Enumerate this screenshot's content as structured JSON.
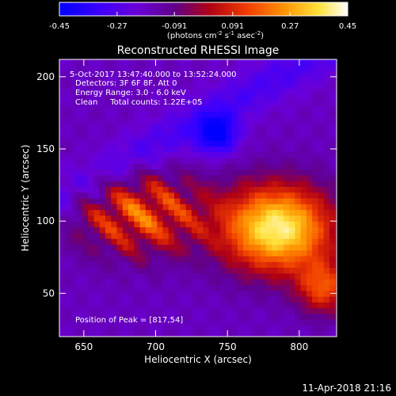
{
  "colorbar": {
    "ticks": [
      "-0.45",
      "-0.27",
      "-0.091",
      "0.091",
      "0.27",
      "0.45"
    ],
    "tick_values": [
      -0.45,
      -0.27,
      -0.091,
      0.091,
      0.27,
      0.45
    ],
    "range": [
      -0.45,
      0.45
    ],
    "unit_parts": [
      "(photons cm",
      "-2",
      " s",
      "-1",
      " asec",
      "-2",
      ")"
    ],
    "colormap": "blue-purple-red-yellow-white"
  },
  "chart_data": {
    "type": "heatmap",
    "title": "Reconstructed RHESSI Image",
    "xlabel": "Heliocentric X (arcsec)",
    "ylabel": "Heliocentric Y (arcsec)",
    "xlim": [
      633,
      826
    ],
    "ylim": [
      20,
      212
    ],
    "x_ticks": [
      650,
      700,
      750,
      800
    ],
    "y_ticks": [
      50,
      100,
      150,
      200
    ],
    "annotations": [
      "5-Oct-2017 13:47:40.000 to 13:52:24.000",
      "Detectors: 3F 6F 8F, Att 0",
      "Energy Range: 3.0 - 6.0 keV",
      "Clean     Total counts: 1.22E+05"
    ],
    "peak_label": "Position of Peak = [817,54]",
    "peak": [
      817,
      54
    ],
    "sources": [
      {
        "x": 785,
        "y": 95,
        "value": 0.4
      },
      {
        "x": 817,
        "y": 54,
        "value": 0.45
      },
      {
        "x": 690,
        "y": 105,
        "value": 0.24
      }
    ],
    "minimum": {
      "x": 743,
      "y": 160,
      "value": -0.45
    },
    "background_value": -0.17,
    "grid": false
  },
  "footer": {
    "date": "11-Apr-2018 21:16"
  },
  "colors": {
    "background": "#000000",
    "foreground": "#ffffff"
  }
}
